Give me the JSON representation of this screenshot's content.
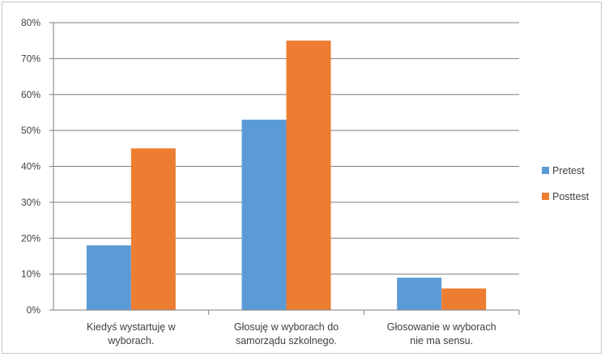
{
  "chart_data": {
    "type": "bar",
    "categories": [
      [
        "Kiedyś wystartuję w",
        "wyborach."
      ],
      [
        "Głosuję w wyborach do",
        "samorządu szkolnego."
      ],
      [
        "Głosowanie w wyborach",
        "nie ma sensu."
      ]
    ],
    "series": [
      {
        "name": "Pretest",
        "color": "#5b9bd5",
        "values": [
          0.18,
          0.53,
          0.09
        ]
      },
      {
        "name": "Posttest",
        "color": "#ed7d31",
        "values": [
          0.45,
          0.75,
          0.06
        ]
      }
    ],
    "ylim": [
      0,
      0.8
    ],
    "yticks": [
      0,
      0.1,
      0.2,
      0.3,
      0.4,
      0.5,
      0.6,
      0.7,
      0.8
    ],
    "ytick_labels": [
      "0%",
      "10%",
      "20%",
      "30%",
      "40%",
      "50%",
      "60%",
      "70%",
      "80%"
    ],
    "grid": true,
    "legend_position": "right",
    "title": "",
    "xlabel": "",
    "ylabel": ""
  }
}
